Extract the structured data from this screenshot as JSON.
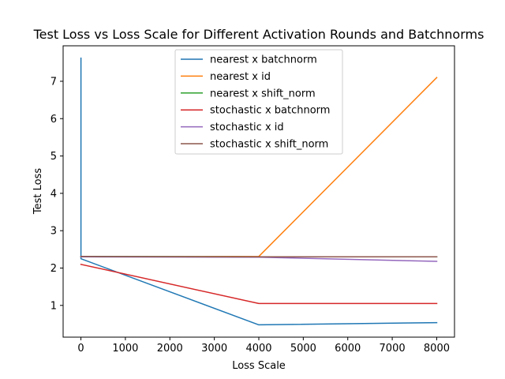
{
  "chart_data": {
    "type": "line",
    "title": "Test Loss vs Loss Scale for Different Activation Rounds and Batchnorms",
    "xlabel": "Loss Scale",
    "ylabel": "Test Loss",
    "xlim": [
      -400,
      8400
    ],
    "ylim": [
      0.15,
      7.95
    ],
    "xticks": [
      0,
      1000,
      2000,
      3000,
      4000,
      5000,
      6000,
      7000,
      8000
    ],
    "yticks": [
      1,
      2,
      3,
      4,
      5,
      6,
      7
    ],
    "grid": false,
    "legend_position": "top-center",
    "series": [
      {
        "name": "nearest x batchnorm",
        "color": "#1f77b4",
        "x": [
          1,
          1,
          4000,
          8000
        ],
        "y": [
          7.62,
          2.25,
          0.48,
          0.54
        ]
      },
      {
        "name": "nearest x id",
        "color": "#ff7f0e",
        "x": [
          1,
          4000,
          8000
        ],
        "y": [
          2.3,
          2.31,
          7.1
        ]
      },
      {
        "name": "nearest x shift_norm",
        "color": "#2ca02c",
        "x": [
          1,
          4000,
          8000
        ],
        "y": [
          2.31,
          2.3,
          2.3
        ]
      },
      {
        "name": "stochastic x batchnorm",
        "color": "#d62728",
        "x": [
          1,
          4000,
          8000
        ],
        "y": [
          2.1,
          1.05,
          1.05
        ]
      },
      {
        "name": "stochastic x id",
        "color": "#9467bd",
        "x": [
          1,
          4000,
          8000
        ],
        "y": [
          2.3,
          2.29,
          2.18
        ]
      },
      {
        "name": "stochastic x shift_norm",
        "color": "#8c564b",
        "x": [
          1,
          4000,
          8000
        ],
        "y": [
          2.31,
          2.3,
          2.3
        ]
      }
    ]
  }
}
